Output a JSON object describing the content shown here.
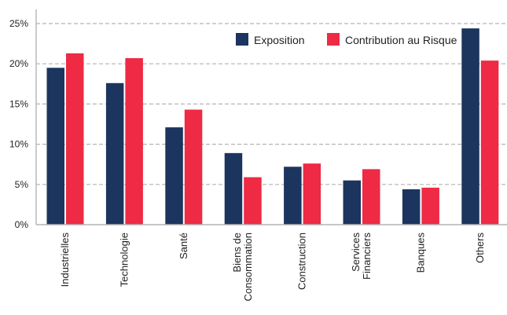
{
  "chart_data": {
    "type": "bar",
    "title": "",
    "xlabel": "",
    "ylabel": "",
    "categories": [
      [
        "Industrielles"
      ],
      [
        "Technologie"
      ],
      [
        "Santé"
      ],
      [
        "Biens de",
        "Consommation"
      ],
      [
        "Construction"
      ],
      [
        "Services",
        "Financiers"
      ],
      [
        "Banques"
      ],
      [
        "Others"
      ]
    ],
    "series": [
      {
        "name": "Exposition",
        "color": "#1c355e",
        "values": [
          19.5,
          17.6,
          12.1,
          8.9,
          7.2,
          5.5,
          4.4,
          24.4
        ]
      },
      {
        "name": "Contribution au Risque",
        "color": "#ee2a44",
        "values": [
          21.3,
          20.7,
          14.3,
          5.9,
          7.6,
          6.9,
          4.6,
          20.4
        ]
      }
    ],
    "ylim": [
      0,
      25
    ],
    "yticks": [
      0,
      5,
      10,
      15,
      20,
      25
    ],
    "ytick_format": "{v}%",
    "grid": true,
    "legend_position": "top-right"
  }
}
